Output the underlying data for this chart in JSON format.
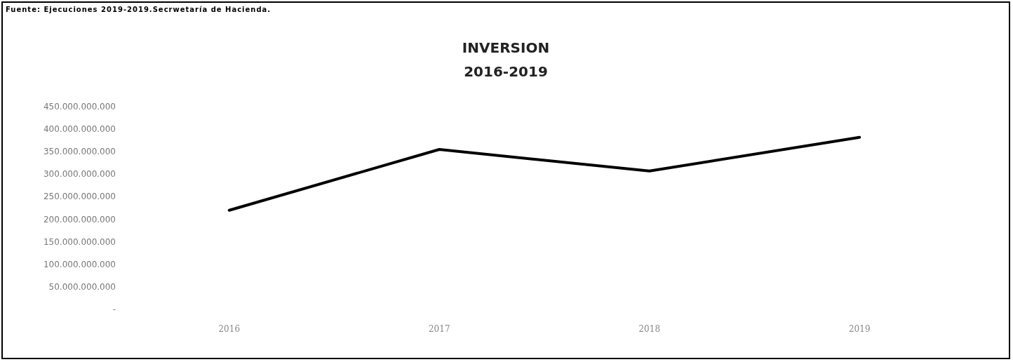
{
  "chart_data": {
    "type": "line",
    "title": "INVERSION\n2016-2019",
    "annotations": [
      "Fuente: Ejecuciones 2019-2019.Secrwetaría de Hacienda."
    ],
    "categories": [
      "2016",
      "2017",
      "2018",
      "2019"
    ],
    "series": [
      {
        "color": "#000000",
        "values": [
          220000000000,
          355000000000,
          307000000000,
          382000000000
        ]
      }
    ],
    "ylim": [
      0,
      450000000000
    ],
    "yticks": [
      {
        "value": 0,
        "label": "-"
      },
      {
        "value": 50000000000,
        "label": "50.000.000.000"
      },
      {
        "value": 100000000000,
        "label": "100.000.000.000"
      },
      {
        "value": 150000000000,
        "label": "150.000.000.000"
      },
      {
        "value": 200000000000,
        "label": "200.000.000.000"
      },
      {
        "value": 250000000000,
        "label": "250.000.000.000"
      },
      {
        "value": 300000000000,
        "label": "300.000.000.000"
      },
      {
        "value": 350000000000,
        "label": "350.000.000.000"
      },
      {
        "value": 400000000000,
        "label": "400.000.000.000"
      },
      {
        "value": 450000000000,
        "label": "450.000.000.000"
      }
    ],
    "grid": false,
    "marker": "none",
    "line_style": "solid"
  }
}
